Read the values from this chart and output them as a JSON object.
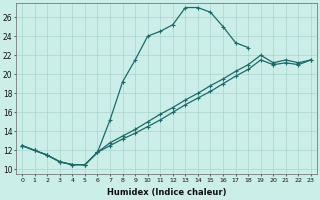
{
  "xlabel": "Humidex (Indice chaleur)",
  "background_color": "#cceee8",
  "grid_color": "#aad4cc",
  "line_color": "#1a6b6b",
  "xlim": [
    -0.5,
    23.5
  ],
  "ylim": [
    9.5,
    27.5
  ],
  "yticks": [
    10,
    12,
    14,
    16,
    18,
    20,
    22,
    24,
    26
  ],
  "xticks": [
    0,
    1,
    2,
    3,
    4,
    5,
    6,
    7,
    8,
    9,
    10,
    11,
    12,
    13,
    14,
    15,
    16,
    17,
    18,
    19,
    20,
    21,
    22,
    23
  ],
  "series": [
    {
      "x": [
        0,
        1,
        2,
        3,
        4,
        5,
        6,
        7,
        8,
        9,
        10,
        11,
        12,
        13,
        14,
        15,
        16,
        17,
        18,
        19,
        20,
        21,
        22,
        23
      ],
      "y": [
        12.5,
        12.0,
        11.5,
        10.8,
        10.5,
        10.5,
        11.8,
        15.2,
        19.2,
        21.5,
        24.0,
        24.5,
        25.2,
        27.0,
        27.0,
        26.5,
        25.0,
        23.3,
        22.8,
        null,
        null,
        null,
        null,
        null
      ],
      "has_markers": true
    },
    {
      "x": [
        0,
        1,
        2,
        3,
        4,
        5,
        6,
        7,
        8,
        9,
        10,
        11,
        12,
        13,
        14,
        15,
        16,
        17,
        18,
        19,
        20,
        21,
        22,
        23
      ],
      "y": [
        12.5,
        12.0,
        11.5,
        10.8,
        10.5,
        10.5,
        11.8,
        12.5,
        13.2,
        13.8,
        14.5,
        15.2,
        16.0,
        16.8,
        17.5,
        18.2,
        19.0,
        19.8,
        20.5,
        21.5,
        21.0,
        21.2,
        21.0,
        21.5
      ],
      "has_markers": true
    },
    {
      "x": [
        0,
        1,
        2,
        3,
        4,
        5,
        6,
        7,
        8,
        9,
        10,
        11,
        12,
        13,
        14,
        15,
        16,
        17,
        18,
        19,
        20,
        21,
        22,
        23
      ],
      "y": [
        12.5,
        12.0,
        11.5,
        10.8,
        10.5,
        10.5,
        11.8,
        12.8,
        13.5,
        14.2,
        15.0,
        15.8,
        16.5,
        17.3,
        18.0,
        18.8,
        19.5,
        20.3,
        21.0,
        22.0,
        21.2,
        21.5,
        21.2,
        21.5
      ],
      "has_markers": true
    }
  ]
}
